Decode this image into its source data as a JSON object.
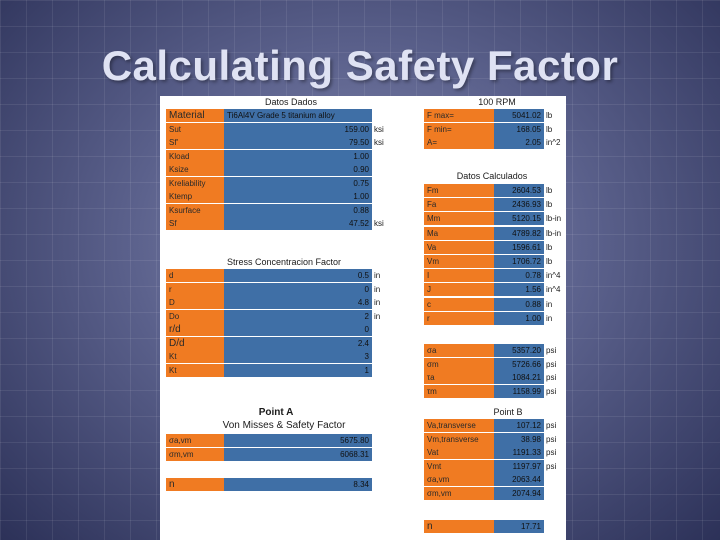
{
  "title": "Calculating Safety Factor",
  "headers": {
    "datos_dados": "Datos Dados",
    "rpm": "100 RPM",
    "datos_calculados": "Datos Calculados",
    "stress": "Stress Concentracion Factor",
    "point_a": "Point A",
    "von_misses": "Von Misses & Safety Factor",
    "point_b": "Point B"
  },
  "given": [
    {
      "label": "Material",
      "value": "Ti6Al4V  Grade 5 titanium alloy",
      "unit": ""
    },
    {
      "label": "Sut",
      "value": "159.00",
      "unit": "ksi"
    },
    {
      "label": "Sf'",
      "value": "79.50",
      "unit": "ksi"
    },
    {
      "label": "Kload",
      "value": "1.00",
      "unit": ""
    },
    {
      "label": "Ksize",
      "value": "0.90",
      "unit": ""
    },
    {
      "label": "Kreliability",
      "value": "0.75",
      "unit": ""
    },
    {
      "label": "Ktemp",
      "value": "1.00",
      "unit": ""
    },
    {
      "label": "Ksurface",
      "value": "0.88",
      "unit": ""
    },
    {
      "label": "Sf",
      "value": "47.52",
      "unit": "ksi"
    }
  ],
  "rpm_data": [
    {
      "label": "F max=",
      "value": "5041.02",
      "unit": "lb"
    },
    {
      "label": "F min=",
      "value": "168.05",
      "unit": "lb"
    },
    {
      "label": "A=",
      "value": "2.05",
      "unit": "in^2"
    }
  ],
  "calculated": [
    {
      "label": "Fm",
      "value": "2604.53",
      "unit": "lb"
    },
    {
      "label": "Fa",
      "value": "2436.93",
      "unit": "lb"
    },
    {
      "label": "Mm",
      "value": "5120.15",
      "unit": "lb-in"
    },
    {
      "label": "Ma",
      "value": "4789.82",
      "unit": "lb-in"
    },
    {
      "label": "Va",
      "value": "1596.61",
      "unit": "lb"
    },
    {
      "label": "Vm",
      "value": "1706.72",
      "unit": "lb"
    },
    {
      "label": "I",
      "value": "0.78",
      "unit": "in^4"
    },
    {
      "label": "J",
      "value": "1.56",
      "unit": "in^4"
    },
    {
      "label": "c",
      "value": "0.88",
      "unit": "in"
    },
    {
      "label": "r",
      "value": "1.00",
      "unit": "in"
    }
  ],
  "stress": [
    {
      "label": "d",
      "value": "0.5",
      "unit": "in"
    },
    {
      "label": "r",
      "value": "0",
      "unit": "in"
    },
    {
      "label": "D",
      "value": "4.8",
      "unit": "in"
    },
    {
      "label": "Do",
      "value": "2",
      "unit": "in"
    },
    {
      "label": "r/d",
      "value": "0",
      "unit": ""
    },
    {
      "label": "D/d",
      "value": "2.4",
      "unit": ""
    },
    {
      "label": "Kt",
      "value": "3",
      "unit": ""
    },
    {
      "label": "Kt",
      "value": "1",
      "unit": ""
    }
  ],
  "stress_b": [
    {
      "label": "σa",
      "value": "5357.20",
      "unit": "psi"
    },
    {
      "label": "σm",
      "value": "5726.66",
      "unit": "psi"
    },
    {
      "label": "τa",
      "value": "1084.21",
      "unit": "psi"
    },
    {
      "label": "τm",
      "value": "1158.99",
      "unit": "psi"
    }
  ],
  "point_a": [
    {
      "label": "σa,vm",
      "value": "5675.80",
      "unit": ""
    },
    {
      "label": "σm,vm",
      "value": "6068.31",
      "unit": ""
    }
  ],
  "point_a_n": {
    "label": "n",
    "value": "8.34",
    "unit": ""
  },
  "point_b": [
    {
      "label": "Va,transverse",
      "value": "107.12",
      "unit": "psi"
    },
    {
      "label": "Vm,transverse",
      "value": "38.98",
      "unit": "psi"
    },
    {
      "label": "Vat",
      "value": "1191.33",
      "unit": "psi"
    },
    {
      "label": "Vmt",
      "value": "1197.97",
      "unit": "psi"
    },
    {
      "label": "σa,vm",
      "value": "2063.44",
      "unit": ""
    },
    {
      "label": "σm,vm",
      "value": "2074.94",
      "unit": ""
    }
  ],
  "point_b_n": {
    "label": "n",
    "value": "17.71",
    "unit": ""
  },
  "colors": {
    "label_bg": "#f07b22",
    "value_bg": "#3f6fa6",
    "background": "#3a3f66"
  }
}
